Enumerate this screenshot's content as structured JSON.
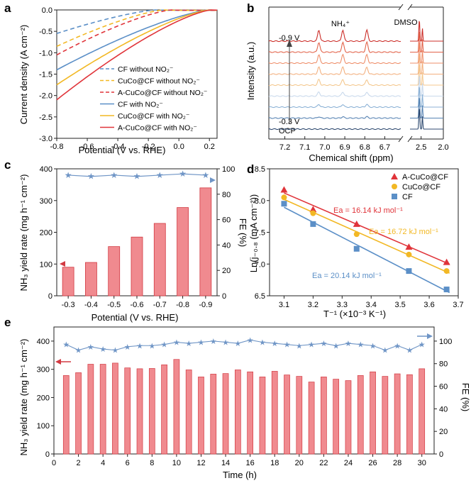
{
  "colors": {
    "cf": "#5b8fc7",
    "cuco": "#f2b824",
    "acuco": "#e0343a",
    "bar_fill": "#f08a8f",
    "bar_edge": "#d23a42",
    "fe": "#6f95c6",
    "nmr": [
      "#cc2f2a",
      "#e2634a",
      "#ee8f6b",
      "#f3b07f",
      "#f4c88f",
      "#c9d9ec",
      "#8cb2d6",
      "#5783b3",
      "#2f4a70"
    ]
  },
  "chart_data": [
    {
      "panel": "a",
      "type": "line",
      "xlabel": "Potential (V vs. RHE)",
      "ylabel": "Current density (A cm⁻²)",
      "xlim": [
        -0.8,
        0.25
      ],
      "ylim": [
        -3.0,
        0.0
      ],
      "xticks": [
        "-0.8",
        "-0.6",
        "-0.4",
        "-0.2",
        "0.0",
        "0.2"
      ],
      "yticks": [
        "0.0",
        "-0.5",
        "-1.0",
        "-1.5",
        "-2.0",
        "-2.5",
        "-3.0"
      ],
      "series": [
        {
          "name": "CF without NO₂⁻",
          "style": "dashed",
          "color_key": "cf",
          "onset": -0.15,
          "jmax": 0.55
        },
        {
          "name": "CuCo@CF without NO₂⁻",
          "style": "dashed",
          "color_key": "cuco",
          "onset": -0.1,
          "jmax": 0.85
        },
        {
          "name": "A-CuCo@CF without NO₂⁻",
          "style": "dashed",
          "color_key": "acuco",
          "onset": -0.05,
          "jmax": 1.05
        },
        {
          "name": "CF with NO₂⁻",
          "style": "solid",
          "color_key": "cf",
          "onset": 0.2,
          "jmax": 1.4
        },
        {
          "name": "CuCo@CF with NO₂⁻",
          "style": "solid",
          "color_key": "cuco",
          "onset": 0.2,
          "jmax": 1.75
        },
        {
          "name": "A-CuCo@CF with NO₂⁻",
          "style": "solid",
          "color_key": "acuco",
          "onset": 0.21,
          "jmax": 2.1
        }
      ]
    },
    {
      "panel": "b",
      "type": "line",
      "xlabel": "Chemical shift (ppm)",
      "ylabel": "Intensity (a.u.)",
      "xticks": [
        "7.2",
        "7.1",
        "7.0",
        "6.9",
        "6.8",
        "6.7",
        "2.5",
        "2.0"
      ],
      "peaks_ppm": [
        7.03,
        6.91,
        6.79
      ],
      "nh4_label": "NH₄⁺",
      "dmso_label": "DMSO",
      "spectra_labels": [
        "-0.9 V",
        "-0.3 V",
        "OCP"
      ],
      "spectra_count": 9
    },
    {
      "panel": "c",
      "type": "bar",
      "xlabel": "Potential (V vs. RHE)",
      "ylabel": "NH₃ yield rate (mg h⁻¹ cm⁻²)",
      "y2label": "FE (%)",
      "categories": [
        "-0.3",
        "-0.4",
        "-0.5",
        "-0.6",
        "-0.7",
        "-0.8",
        "-0.9"
      ],
      "yield": [
        90,
        105,
        155,
        185,
        228,
        278,
        340
      ],
      "fe": [
        95,
        94,
        95,
        94,
        95,
        96,
        95
      ],
      "ylim": [
        0,
        400
      ],
      "y2lim": [
        0,
        100
      ],
      "yticks": [
        "0",
        "100",
        "200",
        "300",
        "400"
      ],
      "y2ticks": [
        "0",
        "20",
        "40",
        "60",
        "80",
        "100"
      ]
    },
    {
      "panel": "d",
      "type": "scatter",
      "xlabel": "T⁻¹ (×10⁻³ K⁻¹)",
      "ylabel": "Ln(j₋₀.₈ (mA cm⁻²))",
      "xlim": [
        3.05,
        3.7
      ],
      "ylim": [
        6.5,
        8.5
      ],
      "xticks": [
        "3.1",
        "3.2",
        "3.3",
        "3.4",
        "3.5",
        "3.6",
        "3.7"
      ],
      "yticks": [
        "6.5",
        "7.0",
        "7.5",
        "8.0",
        "8.5"
      ],
      "x": [
        3.1,
        3.2,
        3.35,
        3.53,
        3.66
      ],
      "series": [
        {
          "name": "A-CuCo@CF",
          "color_key": "acuco",
          "marker": "triangle",
          "values": [
            8.17,
            7.86,
            7.63,
            7.27,
            7.03
          ],
          "ea": "Ea = 16.14 kJ mol⁻¹"
        },
        {
          "name": "CuCo@CF",
          "color_key": "cuco",
          "marker": "circle",
          "values": [
            8.05,
            7.8,
            7.47,
            7.15,
            6.89
          ],
          "ea": "Ea = 16.72 kJ mol⁻¹"
        },
        {
          "name": "CF",
          "color_key": "cf",
          "marker": "square",
          "values": [
            7.95,
            7.63,
            7.24,
            6.89,
            6.6
          ],
          "ea": "Ea = 20.14 kJ mol⁻¹"
        }
      ]
    },
    {
      "panel": "e",
      "type": "bar",
      "xlabel": "Time (h)",
      "ylabel": "NH₃ yield rate (mg h⁻¹ cm⁻²)",
      "y2label": "FE (%)",
      "x": [
        1,
        2,
        3,
        4,
        5,
        6,
        7,
        8,
        9,
        10,
        11,
        12,
        13,
        14,
        15,
        16,
        17,
        18,
        19,
        20,
        21,
        22,
        23,
        24,
        25,
        26,
        27,
        28,
        29,
        30
      ],
      "yield": [
        278,
        288,
        318,
        318,
        322,
        305,
        302,
        303,
        316,
        335,
        298,
        273,
        283,
        285,
        298,
        291,
        273,
        293,
        280,
        275,
        255,
        273,
        265,
        260,
        278,
        291,
        275,
        284,
        281,
        302
      ],
      "fe": [
        97,
        92,
        95,
        93,
        92,
        95,
        96,
        96,
        97,
        99,
        98,
        99,
        100,
        99,
        98,
        101,
        99,
        98,
        97,
        96,
        97,
        98,
        96,
        98,
        97,
        96,
        92,
        96,
        92,
        97
      ],
      "ylim": [
        0,
        450
      ],
      "y2lim": [
        0,
        112.5
      ],
      "yticks": [
        "0",
        "100",
        "200",
        "300",
        "400"
      ],
      "y2ticks": [
        "0",
        "20",
        "40",
        "60",
        "80",
        "100"
      ],
      "xticks": [
        "0",
        "2",
        "4",
        "6",
        "8",
        "10",
        "12",
        "14",
        "16",
        "18",
        "20",
        "22",
        "24",
        "26",
        "28",
        "30"
      ]
    }
  ],
  "panel_labels": [
    "a",
    "b",
    "c",
    "d",
    "e"
  ]
}
